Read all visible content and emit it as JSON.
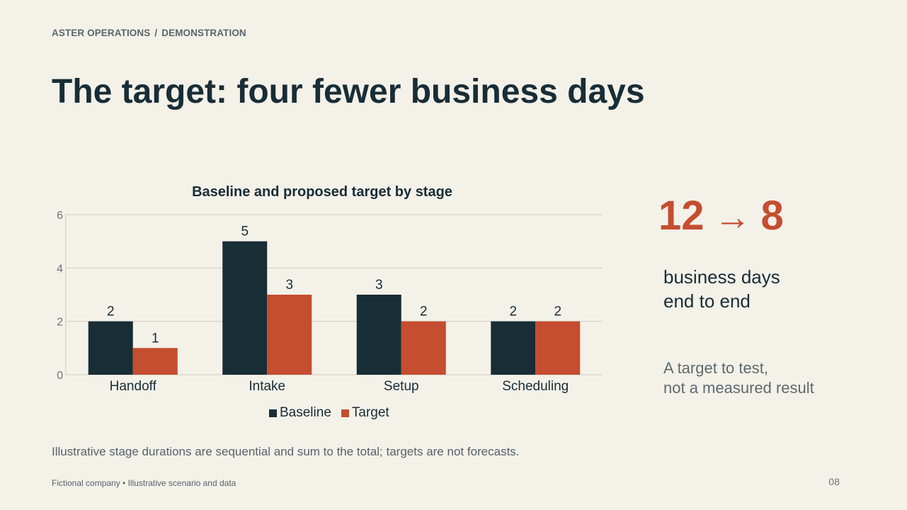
{
  "header": {
    "breadcrumb_org": "ASTER OPERATIONS",
    "breadcrumb_sep": "/",
    "breadcrumb_section": "DEMONSTRATION",
    "title": "The target: four fewer business days"
  },
  "kpi": {
    "from": "12",
    "arrow": "→",
    "to": "8",
    "label_line1": "business days",
    "label_line2": "end to end",
    "note_line1": "A target to test,",
    "note_line2": "not a measured result"
  },
  "footnote": "Illustrative stage durations are sequential and sum to the total; targets are not forecasts.",
  "footer": "Fictional company • Illustrative scenario and data",
  "page_number": "08",
  "colors": {
    "baseline": "#182d36",
    "target": "#c44e2f",
    "grid": "#cfcbc2",
    "axis_text": "#6b7478"
  },
  "chart_data": {
    "type": "bar",
    "title": "Baseline and proposed target by stage",
    "categories": [
      "Handoff",
      "Intake",
      "Setup",
      "Scheduling"
    ],
    "series": [
      {
        "name": "Baseline",
        "values": [
          2,
          5,
          3,
          2
        ]
      },
      {
        "name": "Target",
        "values": [
          1,
          3,
          2,
          2
        ]
      }
    ],
    "ylim": [
      0,
      6
    ],
    "yticks": [
      0,
      2,
      4,
      6
    ],
    "grid": true,
    "legend": "bottom-center",
    "data_labels": true
  }
}
